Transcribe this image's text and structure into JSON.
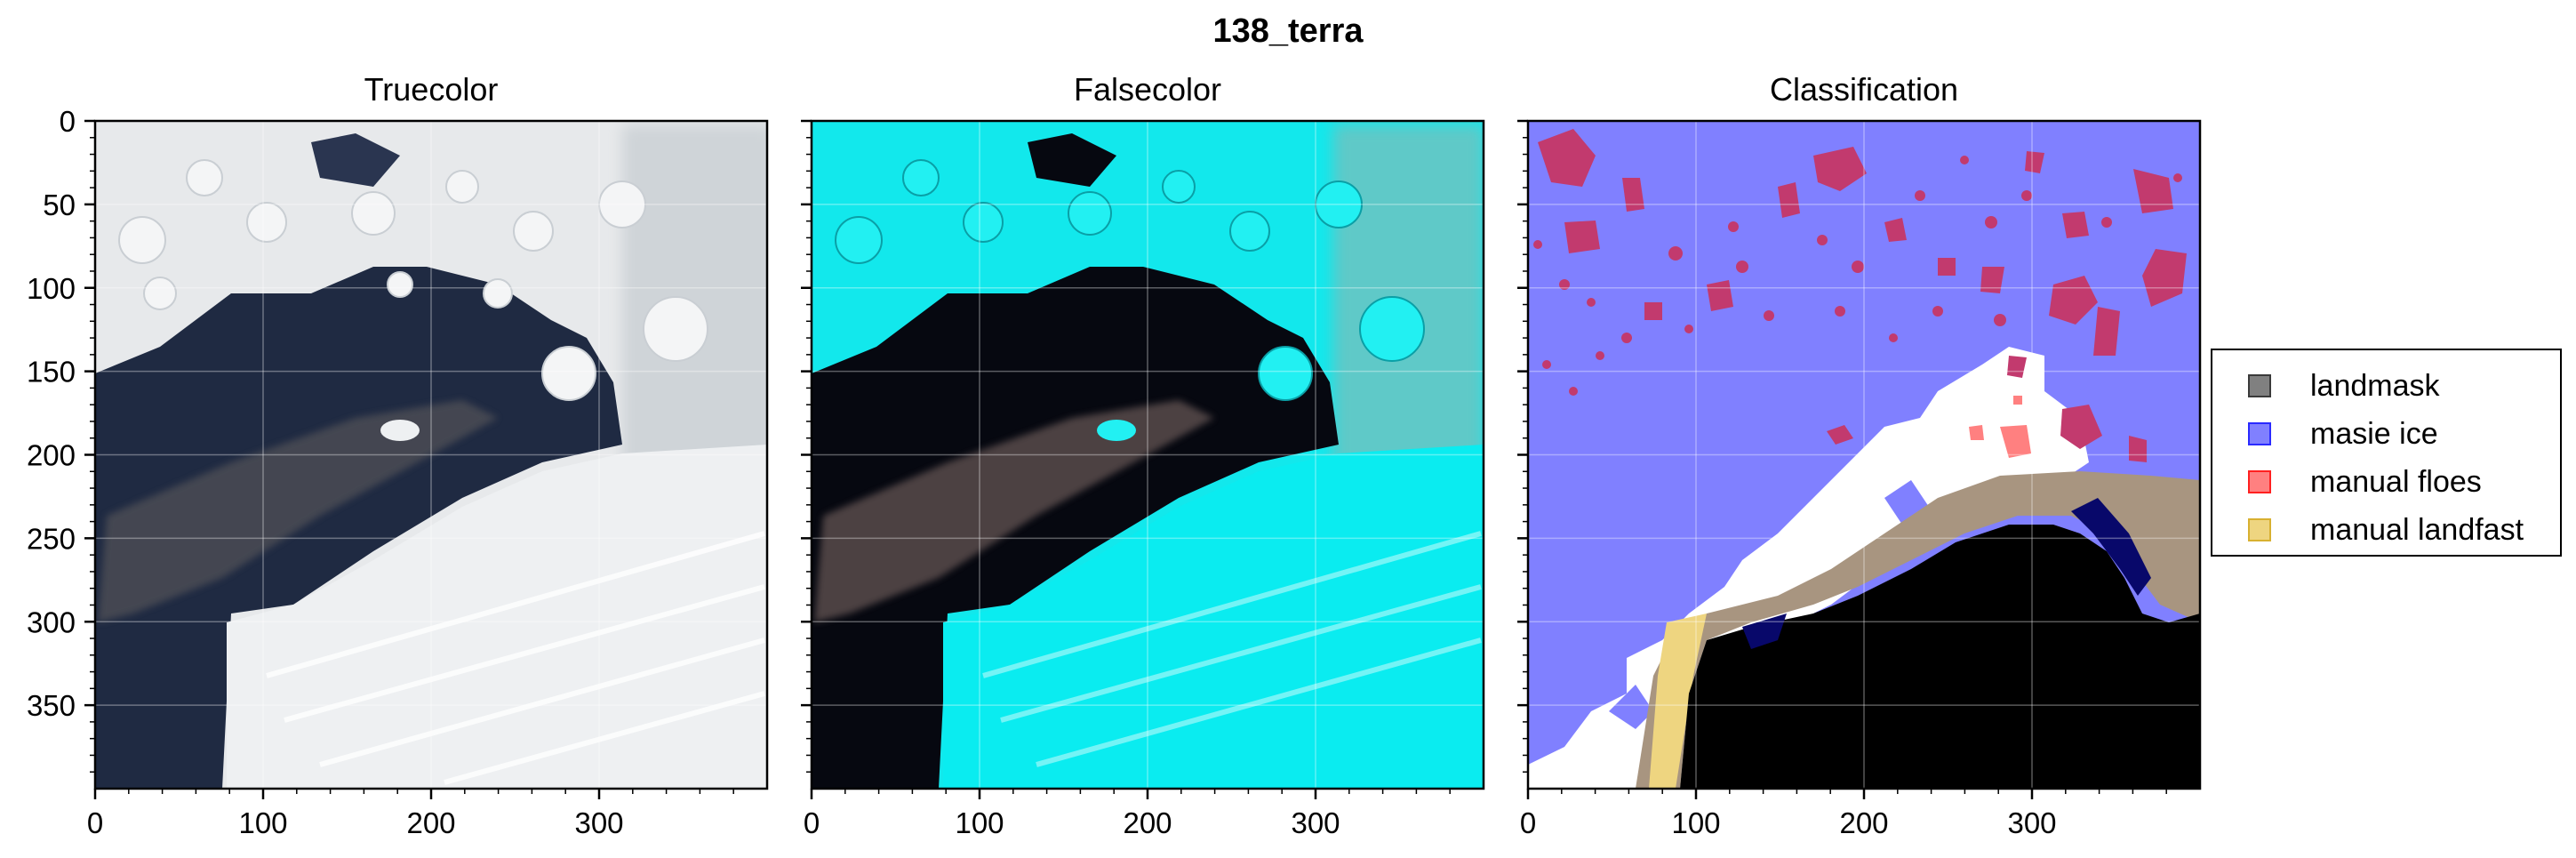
{
  "figure": {
    "suptitle": "138_terra"
  },
  "panels": [
    {
      "title": "Truecolor",
      "x_ticks": [
        "0",
        "100",
        "200",
        "300"
      ],
      "y_ticks": [
        "0",
        "50",
        "100",
        "150",
        "200",
        "250",
        "300",
        "350"
      ]
    },
    {
      "title": "Falsecolor",
      "x_ticks": [
        "0",
        "100",
        "200",
        "300"
      ],
      "y_ticks": []
    },
    {
      "title": "Classification",
      "x_ticks": [
        "0",
        "100",
        "200",
        "300"
      ],
      "y_ticks": []
    }
  ],
  "axes": {
    "xlim": [
      0,
      400
    ],
    "ylim": [
      400,
      0
    ],
    "x_tick_values": [
      0,
      100,
      200,
      300
    ],
    "y_tick_values": [
      0,
      50,
      100,
      150,
      200,
      250,
      300,
      350
    ]
  },
  "legend": {
    "placement": "right",
    "items": [
      {
        "label": "landmask",
        "color": "#808080",
        "edge": "#3a3a3a"
      },
      {
        "label": "masie ice",
        "color": "#8080ff",
        "edge": "#2a2aff"
      },
      {
        "label": "manual floes",
        "color": "#ff8080",
        "edge": "#ff2020"
      },
      {
        "label": "manual landfast",
        "color": "#eed580",
        "edge": "#d8b030"
      }
    ]
  },
  "colors": {
    "water_true": "#1f2a42",
    "ice_true": "#e8eaec",
    "water_false": "#060810",
    "ice_false": "#10eef0",
    "masie": "#8080ff",
    "floe": "#c23a6e",
    "land": "#000000",
    "landfast": "#a89580",
    "white_region": "#ffffff"
  }
}
